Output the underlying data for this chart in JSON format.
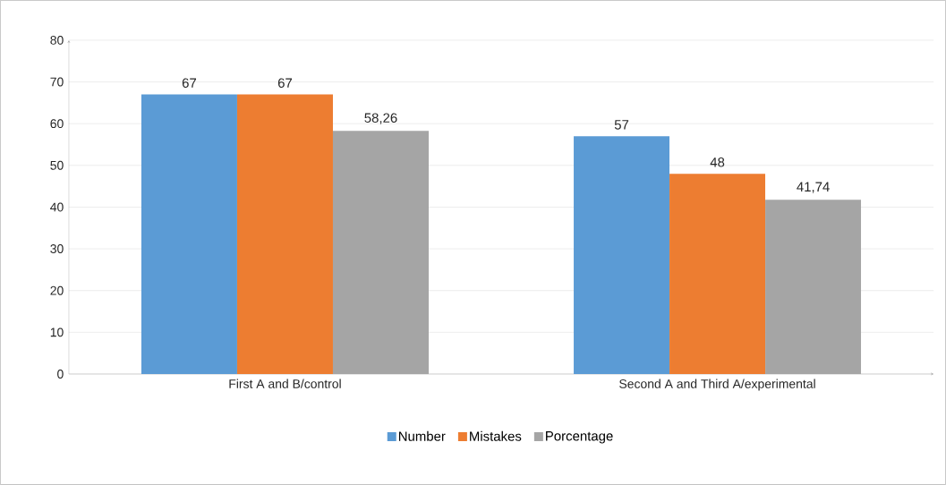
{
  "chart_data": {
    "type": "bar",
    "categories": [
      "First A and B/control",
      "Second A and Third A/experimental"
    ],
    "series": [
      {
        "name": "Number",
        "color": "#5b9bd5",
        "values": [
          67,
          57
        ],
        "value_labels": [
          "67",
          "57"
        ]
      },
      {
        "name": "Mistakes",
        "color": "#ed7d31",
        "values": [
          67,
          48
        ],
        "value_labels": [
          "67",
          "48"
        ]
      },
      {
        "name": "Porcentage",
        "color": "#a5a5a5",
        "values": [
          58.26,
          41.74
        ],
        "value_labels": [
          "58,26",
          "41,74"
        ]
      }
    ],
    "ylim": [
      0,
      80
    ],
    "yticks": [
      0,
      10,
      20,
      30,
      40,
      50,
      60,
      70,
      80
    ],
    "grid": "y",
    "legend": "bottom"
  }
}
